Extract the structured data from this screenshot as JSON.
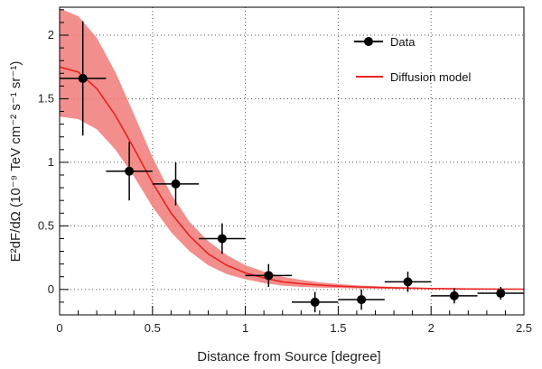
{
  "chart_data": {
    "type": "scatter",
    "title": "",
    "xlabel": "Distance from Source [degree]",
    "ylabel": "E²dF/dΩ (10⁻⁹ TeV cm⁻² s⁻¹ sr⁻¹)",
    "xlim": [
      0,
      2.5
    ],
    "ylim": [
      -0.2,
      2.22
    ],
    "x_ticks": [
      0,
      0.5,
      1,
      1.5,
      2,
      2.5
    ],
    "x_tick_labels": [
      "0",
      "0.5",
      "1",
      "1.5",
      "2",
      "2.5"
    ],
    "y_ticks": [
      0,
      0.5,
      1,
      1.5,
      2
    ],
    "y_tick_labels": [
      "0",
      "0.5",
      "1",
      "1.5",
      "2"
    ],
    "grid": true,
    "grid_style": "dotted",
    "legend_position": "top-right",
    "series": [
      {
        "name": "Data",
        "kind": "points-with-errors",
        "color": "#000000",
        "points": [
          {
            "x": 0.125,
            "y": 1.66,
            "xerr": 0.125,
            "yerr_low": 0.45,
            "yerr_high": 0.45
          },
          {
            "x": 0.375,
            "y": 0.93,
            "xerr": 0.125,
            "yerr_low": 0.23,
            "yerr_high": 0.23
          },
          {
            "x": 0.625,
            "y": 0.83,
            "xerr": 0.125,
            "yerr_low": 0.17,
            "yerr_high": 0.17
          },
          {
            "x": 0.875,
            "y": 0.4,
            "xerr": 0.125,
            "yerr_low": 0.12,
            "yerr_high": 0.12
          },
          {
            "x": 1.125,
            "y": 0.11,
            "xerr": 0.125,
            "yerr_low": 0.09,
            "yerr_high": 0.09
          },
          {
            "x": 1.375,
            "y": -0.1,
            "xerr": 0.125,
            "yerr_low": 0.08,
            "yerr_high": 0.08
          },
          {
            "x": 1.625,
            "y": -0.08,
            "xerr": 0.125,
            "yerr_low": 0.08,
            "yerr_high": 0.08
          },
          {
            "x": 1.875,
            "y": 0.06,
            "xerr": 0.125,
            "yerr_low": 0.08,
            "yerr_high": 0.08
          },
          {
            "x": 2.125,
            "y": -0.05,
            "xerr": 0.125,
            "yerr_low": 0.06,
            "yerr_high": 0.06
          },
          {
            "x": 2.375,
            "y": -0.03,
            "xerr": 0.125,
            "yerr_low": 0.05,
            "yerr_high": 0.05
          }
        ]
      },
      {
        "name": "Diffusion model",
        "kind": "line-with-band",
        "color": "#e8231f",
        "band_color": "#f07a78",
        "x": [
          0,
          0.1,
          0.2,
          0.3,
          0.4,
          0.5,
          0.6,
          0.7,
          0.8,
          0.9,
          1.0,
          1.1,
          1.2,
          1.3,
          1.4,
          1.5,
          1.6,
          1.8,
          2.0,
          2.2,
          2.5
        ],
        "y": [
          1.75,
          1.71,
          1.58,
          1.37,
          1.11,
          0.84,
          0.6,
          0.42,
          0.28,
          0.19,
          0.13,
          0.09,
          0.06,
          0.045,
          0.034,
          0.026,
          0.02,
          0.012,
          0.007,
          0.004,
          0.002
        ],
        "band_low": [
          1.36,
          1.34,
          1.26,
          1.1,
          0.89,
          0.65,
          0.45,
          0.3,
          0.19,
          0.12,
          0.08,
          0.05,
          0.03,
          0.02,
          0.015,
          0.011,
          0.008,
          0.005,
          0.003,
          0.002,
          0.001
        ],
        "band_high": [
          2.21,
          2.15,
          1.98,
          1.71,
          1.38,
          1.04,
          0.75,
          0.53,
          0.38,
          0.27,
          0.19,
          0.14,
          0.1,
          0.075,
          0.056,
          0.043,
          0.033,
          0.02,
          0.012,
          0.008,
          0.004
        ]
      }
    ]
  }
}
